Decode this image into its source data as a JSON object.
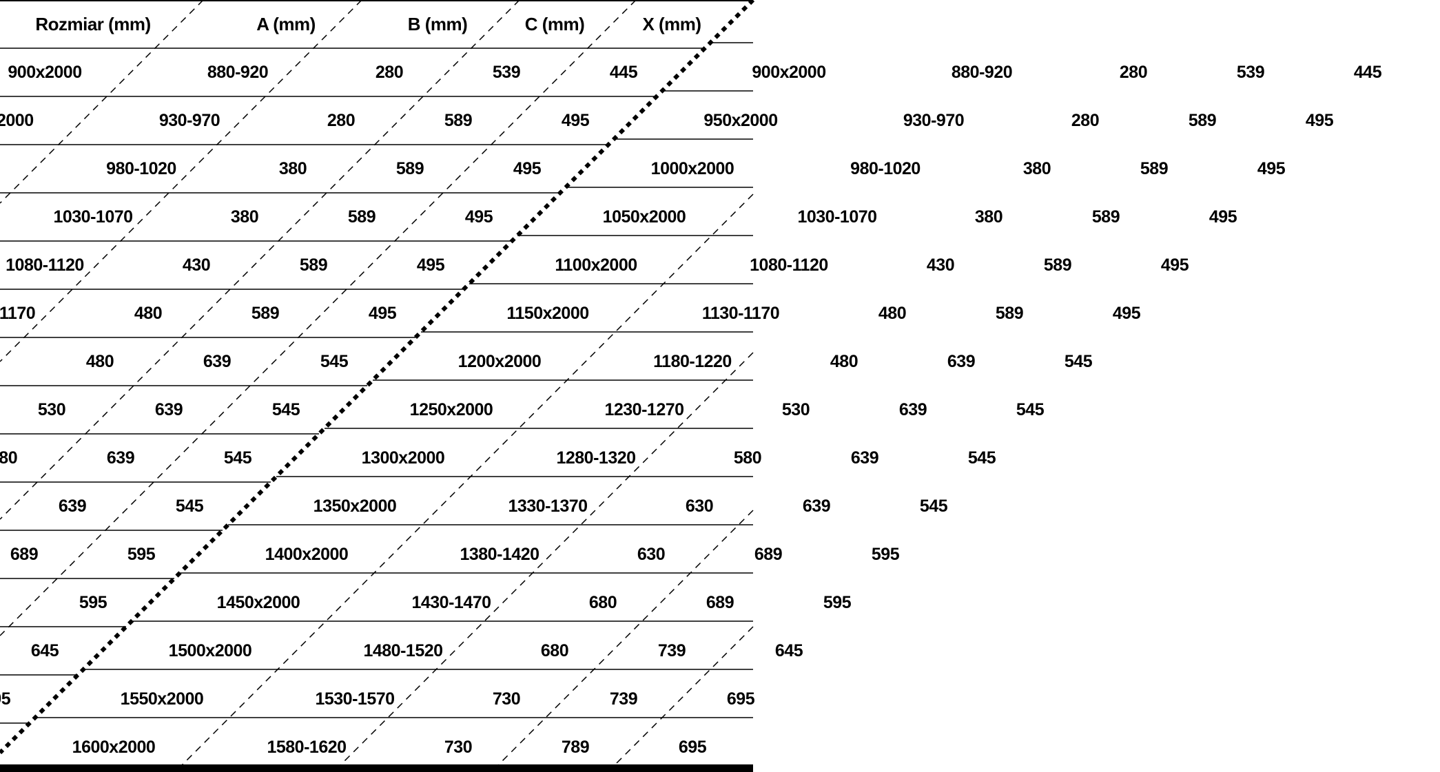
{
  "table": {
    "headers": [
      "Rozmiar (mm)",
      "A (mm)",
      "B (mm)",
      "C (mm)",
      "X (mm)"
    ],
    "rows": [
      [
        "900x2000",
        "880-920",
        "280",
        "539",
        "445"
      ],
      [
        "950x2000",
        "930-970",
        "280",
        "589",
        "495"
      ],
      [
        "1000x2000",
        "980-1020",
        "380",
        "589",
        "495"
      ],
      [
        "1050x2000",
        "1030-1070",
        "380",
        "589",
        "495"
      ],
      [
        "1100x2000",
        "1080-1120",
        "430",
        "589",
        "495"
      ],
      [
        "1150x2000",
        "1130-1170",
        "480",
        "589",
        "495"
      ],
      [
        "1200x2000",
        "1180-1220",
        "480",
        "639",
        "545"
      ],
      [
        "1250x2000",
        "1230-1270",
        "530",
        "639",
        "545"
      ],
      [
        "1300x2000",
        "1280-1320",
        "580",
        "639",
        "545"
      ],
      [
        "1350x2000",
        "1330-1370",
        "630",
        "639",
        "545"
      ],
      [
        "1400x2000",
        "1380-1420",
        "630",
        "689",
        "595"
      ],
      [
        "1450x2000",
        "1430-1470",
        "680",
        "689",
        "595"
      ],
      [
        "1500x2000",
        "1480-1520",
        "680",
        "739",
        "645"
      ],
      [
        "1550x2000",
        "1530-1570",
        "730",
        "739",
        "695"
      ],
      [
        "1600x2000",
        "1580-1620",
        "730",
        "789",
        "695"
      ]
    ]
  }
}
